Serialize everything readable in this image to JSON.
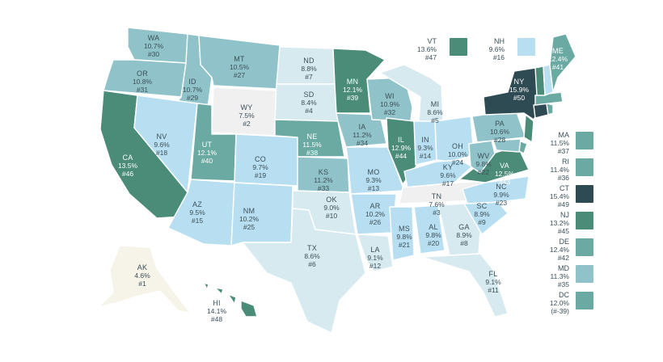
{
  "palette": {
    "c1": "#f6f3e8",
    "c2": "#f0f0f0",
    "c3": "#d6eaf0",
    "c4": "#b7dff1",
    "c5": "#8fc3c9",
    "c6": "#6aaaa3",
    "c7": "#4a8c78",
    "c8": "#2e4a52"
  },
  "states": [
    {
      "code": "WA",
      "pct": "10.7%",
      "rank": "#30"
    },
    {
      "code": "OR",
      "pct": "10.8%",
      "rank": "#31"
    },
    {
      "code": "CA",
      "pct": "13.5%",
      "rank": "#46"
    },
    {
      "code": "ID",
      "pct": "10.7%",
      "rank": "#29"
    },
    {
      "code": "NV",
      "pct": "9.6%",
      "rank": "#18"
    },
    {
      "code": "MT",
      "pct": "10.5%",
      "rank": "#27"
    },
    {
      "code": "WY",
      "pct": "7.5%",
      "rank": "#2"
    },
    {
      "code": "UT",
      "pct": "12.1%",
      "rank": "#40"
    },
    {
      "code": "AZ",
      "pct": "9.5%",
      "rank": "#15"
    },
    {
      "code": "CO",
      "pct": "9.7%",
      "rank": "#19"
    },
    {
      "code": "NM",
      "pct": "10.2%",
      "rank": "#25"
    },
    {
      "code": "ND",
      "pct": "8.8%",
      "rank": "#7"
    },
    {
      "code": "SD",
      "pct": "8.4%",
      "rank": "#4"
    },
    {
      "code": "NE",
      "pct": "11.5%",
      "rank": "#38"
    },
    {
      "code": "KS",
      "pct": "11.2%",
      "rank": "#33"
    },
    {
      "code": "OK",
      "pct": "9.0%",
      "rank": "#10"
    },
    {
      "code": "TX",
      "pct": "8.6%",
      "rank": "#6"
    },
    {
      "code": "MN",
      "pct": "12.1%",
      "rank": "#39"
    },
    {
      "code": "IA",
      "pct": "11.2%",
      "rank": "#34"
    },
    {
      "code": "MO",
      "pct": "9.3%",
      "rank": "#13"
    },
    {
      "code": "AR",
      "pct": "10.2%",
      "rank": "#26"
    },
    {
      "code": "LA",
      "pct": "9.1%",
      "rank": "#12"
    },
    {
      "code": "WI",
      "pct": "10.9%",
      "rank": "#32"
    },
    {
      "code": "IL",
      "pct": "12.9%",
      "rank": "#44"
    },
    {
      "code": "MI",
      "pct": "8.6%",
      "rank": "#5"
    },
    {
      "code": "IN",
      "pct": "9.3%",
      "rank": "#14"
    },
    {
      "code": "OH",
      "pct": "10.0%",
      "rank": "#24"
    },
    {
      "code": "KY",
      "pct": "9.6%",
      "rank": "#17"
    },
    {
      "code": "TN",
      "pct": "7.6%",
      "rank": "#3"
    },
    {
      "code": "MS",
      "pct": "9.8%",
      "rank": "#21"
    },
    {
      "code": "AL",
      "pct": "9.8%",
      "rank": "#20"
    },
    {
      "code": "GA",
      "pct": "8.9%",
      "rank": "#8"
    },
    {
      "code": "FL",
      "pct": "9.1%",
      "rank": "#11"
    },
    {
      "code": "SC",
      "pct": "8.9%",
      "rank": "#9"
    },
    {
      "code": "NC",
      "pct": "9.9%",
      "rank": "#23"
    },
    {
      "code": "VA",
      "pct": "12.5%",
      "rank": "#43"
    },
    {
      "code": "WV",
      "pct": "9.8%",
      "rank": "#22"
    },
    {
      "code": "PA",
      "pct": "10.6%",
      "rank": "#28"
    },
    {
      "code": "NY",
      "pct": "15.9%",
      "rank": "#50"
    },
    {
      "code": "ME",
      "pct": "12.4%",
      "rank": "#41"
    },
    {
      "code": "AK",
      "pct": "4.6%",
      "rank": "#1"
    },
    {
      "code": "HI",
      "pct": "14.1%",
      "rank": "#48"
    }
  ],
  "callouts": [
    {
      "code": "VT",
      "pct": "13.6%",
      "rank": "#47"
    },
    {
      "code": "NH",
      "pct": "9.6%",
      "rank": "#16"
    }
  ],
  "sidebar": [
    {
      "code": "MA",
      "pct": "11.5%",
      "rank": "#37"
    },
    {
      "code": "RI",
      "pct": "11.4%",
      "rank": "#36"
    },
    {
      "code": "CT",
      "pct": "15.4%",
      "rank": "#49"
    },
    {
      "code": "NJ",
      "pct": "13.2%",
      "rank": "#45"
    },
    {
      "code": "DE",
      "pct": "12.4%",
      "rank": "#42"
    },
    {
      "code": "MD",
      "pct": "11.3%",
      "rank": "#35"
    },
    {
      "code": "DC",
      "pct": "12.0%",
      "rank": "(#-39)"
    }
  ]
}
